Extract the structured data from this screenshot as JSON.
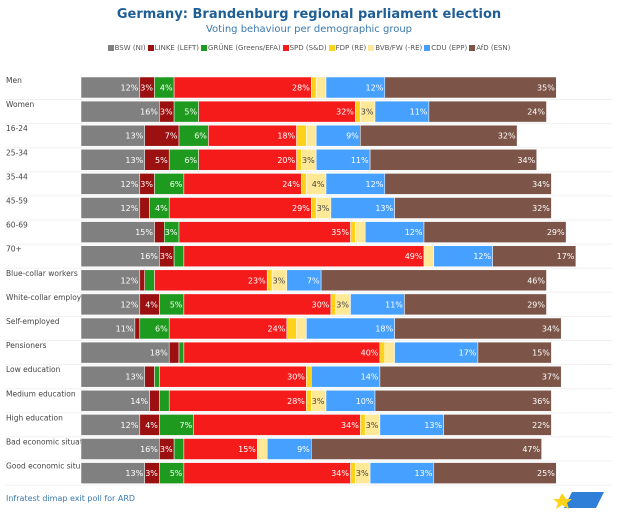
{
  "chart_data": {
    "type": "bar",
    "orientation": "horizontal",
    "stacked": true,
    "title": "Germany: Brandenburg regional parliament election",
    "subtitle": "Voting behaviour per demographic group",
    "unit": "%",
    "legend_position": "top",
    "grid": false,
    "categories": [
      "Men",
      "Women",
      "16-24",
      "25-34",
      "35-44",
      "45-59",
      "60-69",
      "70+",
      "Blue-collar workers",
      "White-collar employees",
      "Self-employed",
      "Pensioners",
      "Low education",
      "Medium education",
      "High education",
      "Bad economic situation",
      "Good economic situation"
    ],
    "series": [
      {
        "name": "BSW (NI)",
        "color": "#808080",
        "text": "#ffffff",
        "values": [
          12,
          16,
          13,
          13,
          12,
          12,
          15,
          16,
          12,
          12,
          11,
          18,
          13,
          14,
          12,
          16,
          13
        ]
      },
      {
        "name": "LINKE (LEFT)",
        "color": "#9b1111",
        "text": "#ffffff",
        "values": [
          3,
          3,
          7,
          5,
          3,
          2,
          2,
          3,
          1,
          4,
          1,
          2,
          2,
          2,
          4,
          3,
          3
        ]
      },
      {
        "name": "GRÜNE (Greens/EFA)",
        "color": "#1e9b1e",
        "text": "#ffffff",
        "values": [
          4,
          5,
          6,
          6,
          6,
          4,
          3,
          2,
          2,
          5,
          6,
          1,
          1,
          2,
          7,
          2,
          5
        ]
      },
      {
        "name": "SPD (S&D)",
        "color": "#f51b1b",
        "text": "#ffffff",
        "values": [
          28,
          32,
          18,
          20,
          24,
          29,
          35,
          49,
          23,
          30,
          24,
          40,
          30,
          28,
          34,
          15,
          34
        ]
      },
      {
        "name": "FDP (RE)",
        "color": "#ffd21a",
        "text": "#444444",
        "values": [
          1,
          1,
          2,
          1,
          1,
          1,
          1,
          0,
          1,
          1,
          2,
          1,
          1,
          1,
          1,
          0,
          1
        ]
      },
      {
        "name": "BVB/FW (-RE)",
        "color": "#ffe896",
        "text": "#444444",
        "values": [
          2,
          3,
          2,
          3,
          4,
          3,
          2,
          2,
          3,
          3,
          2,
          2,
          0,
          3,
          3,
          2,
          3
        ]
      },
      {
        "name": "CDU (EPP)",
        "color": "#46a0ff",
        "text": "#ffffff",
        "values": [
          12,
          11,
          9,
          11,
          12,
          13,
          12,
          12,
          7,
          11,
          18,
          17,
          14,
          10,
          13,
          9,
          13
        ]
      },
      {
        "name": "AfD (ESN)",
        "color": "#7c5548",
        "text": "#ffffff",
        "values": [
          35,
          24,
          32,
          34,
          34,
          32,
          29,
          17,
          46,
          29,
          34,
          15,
          37,
          36,
          22,
          47,
          25
        ]
      }
    ]
  },
  "footer": {
    "source": "Infratest dimap exit poll for ARD"
  }
}
